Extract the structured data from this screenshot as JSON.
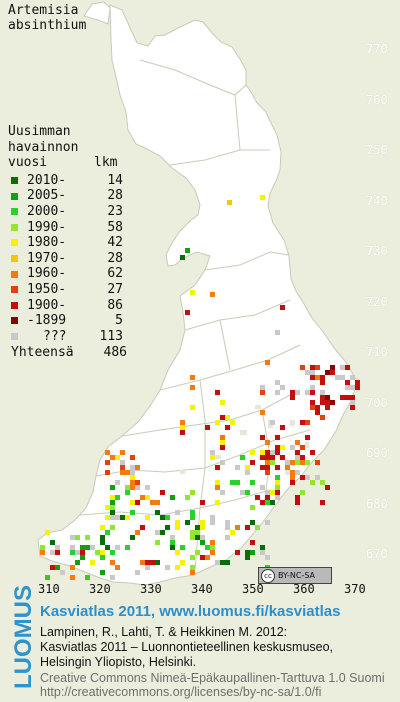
{
  "species": {
    "line1": "Artemisia",
    "line2": "absinthium"
  },
  "legend": {
    "header": [
      "Uusimman",
      "havainnon"
    ],
    "col_year": "vuosi",
    "col_count": "lkm",
    "rows": [
      {
        "label": "2010-",
        "count": "14",
        "color": "#0b6c0b"
      },
      {
        "label": "2005-",
        "count": "28",
        "color": "#11a011"
      },
      {
        "label": "2000-",
        "count": "23",
        "color": "#2bd02b"
      },
      {
        "label": "1990-",
        "count": "58",
        "color": "#8fe82f"
      },
      {
        "label": "1980-",
        "count": "42",
        "color": "#f4f400"
      },
      {
        "label": "1970-",
        "count": "28",
        "color": "#f6c700"
      },
      {
        "label": "1960-",
        "count": "62",
        "color": "#f47a12"
      },
      {
        "label": "1950-",
        "count": "27",
        "color": "#e44112"
      },
      {
        "label": "1900-",
        "count": "86",
        "color": "#c40f0f"
      },
      {
        "label": "-1899",
        "count": "5",
        "color": "#8b0000"
      },
      {
        "label": "???",
        "count": "113",
        "color": "#c9c9c9"
      }
    ],
    "total_label": "Yhteensä",
    "total_count": "486"
  },
  "axes": {
    "y_ticks": [
      "770",
      "760",
      "750",
      "740",
      "730",
      "720",
      "710",
      "700",
      "690",
      "680",
      "670"
    ],
    "x_ticks": [
      "310",
      "320",
      "330",
      "340",
      "350",
      "360",
      "370"
    ]
  },
  "license_badge": {
    "symbol": "cc",
    "text": "BY-NC-SA"
  },
  "footer": {
    "logo": "LUOMUS",
    "title": "Kasviatlas 2011, www.luomus.fi/kasviatlas",
    "citation": [
      "Lampinen, R., Lahti, T. & Heikkinen M. 2012:",
      "Kasviatlas 2011 – Luonnontieteellinen keskusmuseo,",
      "Helsingin Yliopisto, Helsinki."
    ],
    "license": [
      "Creative Commons Nimeä-Epäkaupallinen-Tarttuva 1.0 Suomi",
      "http://creativecommons.org/licenses/by-nc-sa/1.0/fi"
    ]
  },
  "colors": {
    "land": "#ffffff",
    "background": "#eceedd",
    "borders": "#c8cab6",
    "accent": "#2c8ecb"
  }
}
